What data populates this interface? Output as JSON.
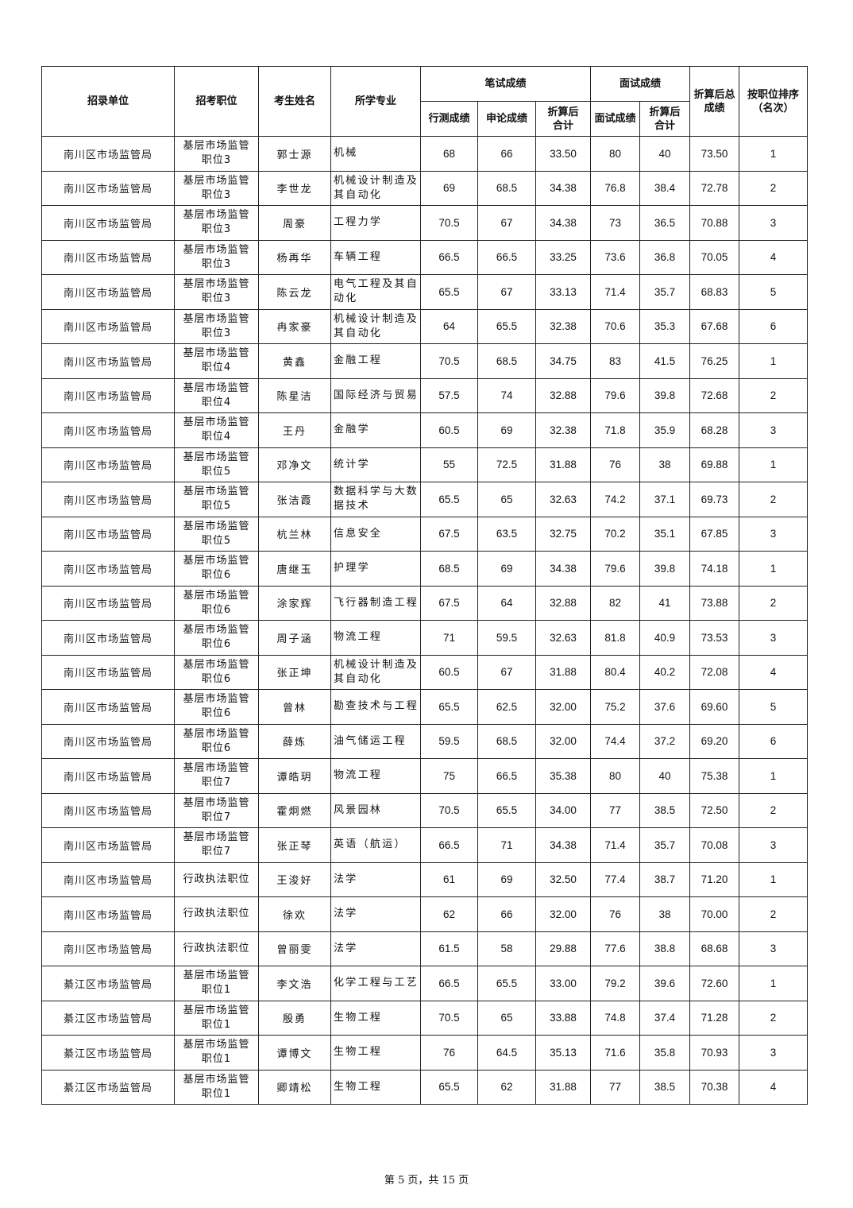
{
  "header": {
    "unit": "招录单位",
    "position": "招考职位",
    "name": "考生姓名",
    "major": "所学专业",
    "written": "笔试成绩",
    "xingce": "行测成绩",
    "shenlun": "申论成绩",
    "written_total": "折算后合计",
    "interview": "面试成绩",
    "interview_score": "面试成绩",
    "interview_total": "折算后合计",
    "final_total": "折算后总成绩",
    "rank": "按职位排序（名次）"
  },
  "rows": [
    [
      "南川区市场监管局",
      "基层市场监管职位3",
      "郭士源",
      "机械",
      "68",
      "66",
      "33.50",
      "80",
      "40",
      "73.50",
      "1"
    ],
    [
      "南川区市场监管局",
      "基层市场监管职位3",
      "李世龙",
      "机械设计制造及其自动化",
      "69",
      "68.5",
      "34.38",
      "76.8",
      "38.4",
      "72.78",
      "2"
    ],
    [
      "南川区市场监管局",
      "基层市场监管职位3",
      "周豪",
      "工程力学",
      "70.5",
      "67",
      "34.38",
      "73",
      "36.5",
      "70.88",
      "3"
    ],
    [
      "南川区市场监管局",
      "基层市场监管职位3",
      "杨再华",
      "车辆工程",
      "66.5",
      "66.5",
      "33.25",
      "73.6",
      "36.8",
      "70.05",
      "4"
    ],
    [
      "南川区市场监管局",
      "基层市场监管职位3",
      "陈云龙",
      "电气工程及其自动化",
      "65.5",
      "67",
      "33.13",
      "71.4",
      "35.7",
      "68.83",
      "5"
    ],
    [
      "南川区市场监管局",
      "基层市场监管职位3",
      "冉家豪",
      "机械设计制造及其自动化",
      "64",
      "65.5",
      "32.38",
      "70.6",
      "35.3",
      "67.68",
      "6"
    ],
    [
      "南川区市场监管局",
      "基层市场监管职位4",
      "黄鑫",
      "金融工程",
      "70.5",
      "68.5",
      "34.75",
      "83",
      "41.5",
      "76.25",
      "1"
    ],
    [
      "南川区市场监管局",
      "基层市场监管职位4",
      "陈星洁",
      "国际经济与贸易",
      "57.5",
      "74",
      "32.88",
      "79.6",
      "39.8",
      "72.68",
      "2"
    ],
    [
      "南川区市场监管局",
      "基层市场监管职位4",
      "王丹",
      "金融学",
      "60.5",
      "69",
      "32.38",
      "71.8",
      "35.9",
      "68.28",
      "3"
    ],
    [
      "南川区市场监管局",
      "基层市场监管职位5",
      "邓净文",
      "统计学",
      "55",
      "72.5",
      "31.88",
      "76",
      "38",
      "69.88",
      "1"
    ],
    [
      "南川区市场监管局",
      "基层市场监管职位5",
      "张洁霞",
      "数据科学与大数据技术",
      "65.5",
      "65",
      "32.63",
      "74.2",
      "37.1",
      "69.73",
      "2"
    ],
    [
      "南川区市场监管局",
      "基层市场监管职位5",
      "杭兰林",
      "信息安全",
      "67.5",
      "63.5",
      "32.75",
      "70.2",
      "35.1",
      "67.85",
      "3"
    ],
    [
      "南川区市场监管局",
      "基层市场监管职位6",
      "唐继玉",
      "护理学",
      "68.5",
      "69",
      "34.38",
      "79.6",
      "39.8",
      "74.18",
      "1"
    ],
    [
      "南川区市场监管局",
      "基层市场监管职位6",
      "涂家辉",
      "飞行器制造工程",
      "67.5",
      "64",
      "32.88",
      "82",
      "41",
      "73.88",
      "2"
    ],
    [
      "南川区市场监管局",
      "基层市场监管职位6",
      "周子涵",
      "物流工程",
      "71",
      "59.5",
      "32.63",
      "81.8",
      "40.9",
      "73.53",
      "3"
    ],
    [
      "南川区市场监管局",
      "基层市场监管职位6",
      "张正坤",
      "机械设计制造及其自动化",
      "60.5",
      "67",
      "31.88",
      "80.4",
      "40.2",
      "72.08",
      "4"
    ],
    [
      "南川区市场监管局",
      "基层市场监管职位6",
      "曾林",
      "勘查技术与工程",
      "65.5",
      "62.5",
      "32.00",
      "75.2",
      "37.6",
      "69.60",
      "5"
    ],
    [
      "南川区市场监管局",
      "基层市场监管职位6",
      "薛炼",
      "油气储运工程",
      "59.5",
      "68.5",
      "32.00",
      "74.4",
      "37.2",
      "69.20",
      "6"
    ],
    [
      "南川区市场监管局",
      "基层市场监管职位7",
      "谭皓玥",
      "物流工程",
      "75",
      "66.5",
      "35.38",
      "80",
      "40",
      "75.38",
      "1"
    ],
    [
      "南川区市场监管局",
      "基层市场监管职位7",
      "霍炯燃",
      "风景园林",
      "70.5",
      "65.5",
      "34.00",
      "77",
      "38.5",
      "72.50",
      "2"
    ],
    [
      "南川区市场监管局",
      "基层市场监管职位7",
      "张正琴",
      "英语（航运）",
      "66.5",
      "71",
      "34.38",
      "71.4",
      "35.7",
      "70.08",
      "3"
    ],
    [
      "南川区市场监管局",
      "行政执法职位",
      "王浚好",
      "法学",
      "61",
      "69",
      "32.50",
      "77.4",
      "38.7",
      "71.20",
      "1"
    ],
    [
      "南川区市场监管局",
      "行政执法职位",
      "徐欢",
      "法学",
      "62",
      "66",
      "32.00",
      "76",
      "38",
      "70.00",
      "2"
    ],
    [
      "南川区市场监管局",
      "行政执法职位",
      "曾丽雯",
      "法学",
      "61.5",
      "58",
      "29.88",
      "77.6",
      "38.8",
      "68.68",
      "3"
    ],
    [
      "綦江区市场监管局",
      "基层市场监管职位1",
      "李文浩",
      "化学工程与工艺",
      "66.5",
      "65.5",
      "33.00",
      "79.2",
      "39.6",
      "72.60",
      "1"
    ],
    [
      "綦江区市场监管局",
      "基层市场监管职位1",
      "殷勇",
      "生物工程",
      "70.5",
      "65",
      "33.88",
      "74.8",
      "37.4",
      "71.28",
      "2"
    ],
    [
      "綦江区市场监管局",
      "基层市场监管职位1",
      "谭博文",
      "生物工程",
      "76",
      "64.5",
      "35.13",
      "71.6",
      "35.8",
      "70.93",
      "3"
    ],
    [
      "綦江区市场监管局",
      "基层市场监管职位1",
      "卿靖松",
      "生物工程",
      "65.5",
      "62",
      "31.88",
      "77",
      "38.5",
      "70.38",
      "4"
    ]
  ],
  "footer": "第 5 页，共 15 页"
}
